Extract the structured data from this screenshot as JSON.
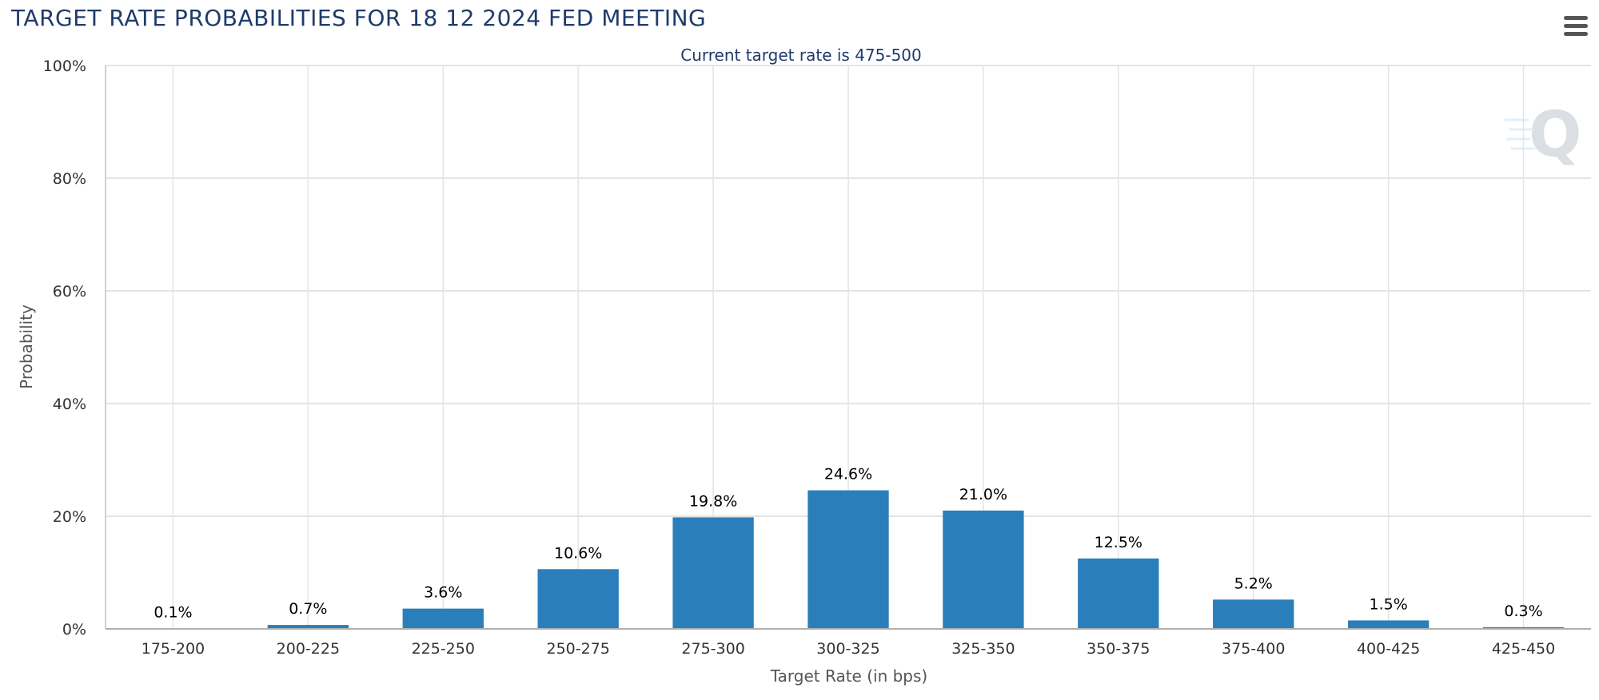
{
  "header": {
    "title": "TARGET RATE PROBABILITIES FOR 18 12 2024 FED MEETING",
    "menu_icon": "hamburger-menu-icon"
  },
  "chart_data": {
    "type": "bar",
    "title": "TARGET RATE PROBABILITIES FOR 18 12 2024 FED MEETING",
    "subtitle": "Current target rate is 475-500",
    "xlabel": "Target Rate (in bps)",
    "ylabel": "Probability",
    "ylim": [
      0,
      100
    ],
    "yticks": [
      "0%",
      "20%",
      "40%",
      "60%",
      "80%",
      "100%"
    ],
    "categories": [
      "175-200",
      "200-225",
      "225-250",
      "250-275",
      "275-300",
      "300-325",
      "325-350",
      "350-375",
      "375-400",
      "400-425",
      "425-450"
    ],
    "values": [
      0.1,
      0.7,
      3.6,
      10.6,
      19.8,
      24.6,
      21.0,
      12.5,
      5.2,
      1.5,
      0.3
    ],
    "data_labels": [
      "0.1%",
      "0.7%",
      "3.6%",
      "10.6%",
      "19.8%",
      "24.6%",
      "21.0%",
      "12.5%",
      "5.2%",
      "1.5%",
      "0.3%"
    ],
    "bar_color": "#2a7fba",
    "grid": true
  }
}
